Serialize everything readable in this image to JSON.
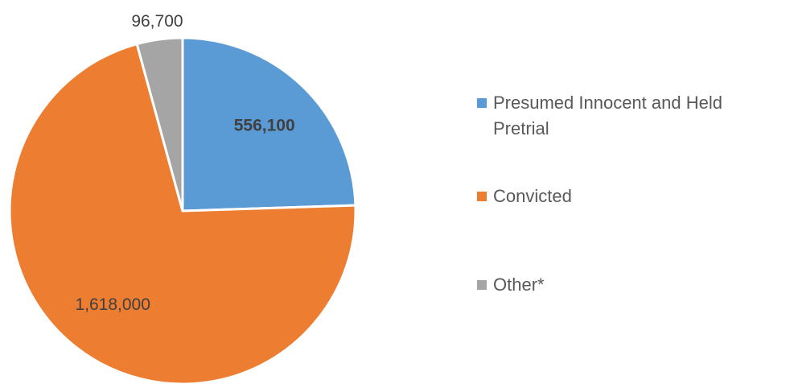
{
  "chart_data": {
    "type": "pie",
    "categories": [
      "Presumed Innocent and Held Pretrial",
      "Convicted",
      "Other*"
    ],
    "values": [
      556100,
      1618000,
      96700
    ],
    "value_labels": [
      "556,100",
      "1,618,000",
      "96,700"
    ],
    "colors": [
      "#5b9bd5",
      "#ed7d31",
      "#a5a5a5"
    ],
    "legend": "right"
  }
}
